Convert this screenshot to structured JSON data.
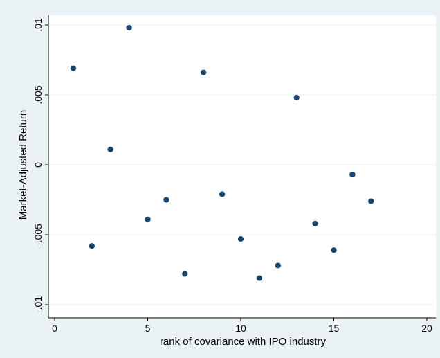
{
  "chart_data": {
    "type": "scatter",
    "xlabel": "rank of covariance with IPO industry",
    "ylabel": "Market-Adjusted Return",
    "xlim": [
      0,
      20
    ],
    "ylim": [
      -0.01,
      0.01
    ],
    "x_ticks": [
      0,
      5,
      10,
      15,
      20
    ],
    "x_tick_labels": [
      "0",
      "5",
      "10",
      "15",
      "20"
    ],
    "y_ticks": [
      -0.01,
      -0.005,
      0,
      0.005,
      0.01
    ],
    "y_tick_labels": [
      "-.01",
      "-.005",
      "0",
      ".005",
      ".01"
    ],
    "grid": "horizontal",
    "x": [
      1,
      2,
      3,
      4,
      5,
      6,
      7,
      8,
      9,
      10,
      11,
      12,
      13,
      14,
      15,
      16,
      17
    ],
    "y": [
      0.0069,
      -0.0058,
      0.0011,
      0.0098,
      -0.0039,
      -0.0025,
      -0.0078,
      0.0066,
      -0.0021,
      -0.0053,
      -0.0081,
      -0.0072,
      0.0048,
      -0.0042,
      -0.0061,
      -0.0007,
      -0.0026
    ],
    "colors": {
      "background": "#eaf2f3",
      "plot_area": "#ffffff",
      "marker": "#1a476f",
      "grid": "#eaf2f3"
    }
  }
}
